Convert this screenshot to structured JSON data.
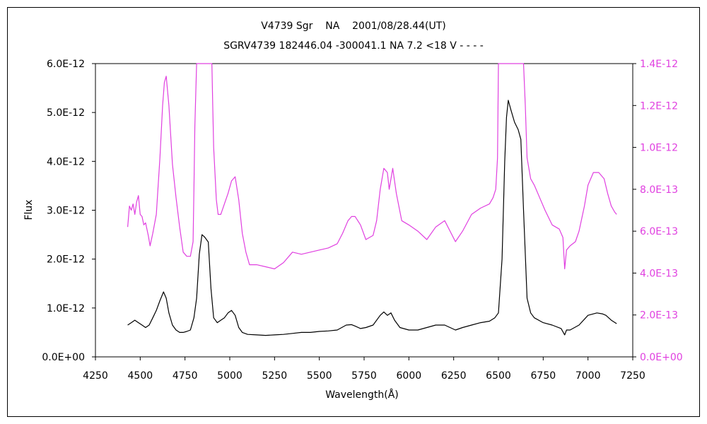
{
  "chart_data": {
    "type": "line",
    "title": "V4739 Sgr    NA    2001/08/28.44(UT)",
    "subtitle": "SGRV4739 182446.04 -300041.1 NA 7.2 <18 V - - - -",
    "xlabel": "Wavelength(Å)",
    "ylabel": "Flux",
    "xlim": [
      4250,
      7250
    ],
    "ylim_left": [
      0,
      6e-12
    ],
    "ylim_right": [
      0,
      1.4e-12
    ],
    "grid": false,
    "x_ticks": [
      "4250",
      "4500",
      "4750",
      "5000",
      "5250",
      "5500",
      "5750",
      "6000",
      "6250",
      "6500",
      "6750",
      "7000",
      "7250"
    ],
    "y_ticks_left": [
      "0.0E+00",
      "1.0E-12",
      "2.0E-12",
      "3.0E-12",
      "4.0E-12",
      "5.0E-12",
      "6.0E-12"
    ],
    "y_ticks_right": [
      "0.0E+00",
      "2.0E-13",
      "4.0E-13",
      "6.0E-13",
      "8.0E-13",
      "1.0E-12",
      "1.2E-12",
      "1.4E-12"
    ],
    "series": [
      {
        "axis": "left",
        "color": "#000000",
        "x": [
          4430,
          4450,
          4470,
          4490,
          4510,
          4530,
          4550,
          4570,
          4590,
          4610,
          4630,
          4645,
          4660,
          4680,
          4700,
          4720,
          4740,
          4760,
          4780,
          4800,
          4815,
          4830,
          4845,
          4860,
          4880,
          4895,
          4910,
          4930,
          4950,
          4970,
          4990,
          5010,
          5030,
          5050,
          5070,
          5100,
          5150,
          5200,
          5250,
          5300,
          5350,
          5400,
          5450,
          5500,
          5550,
          5600,
          5650,
          5680,
          5700,
          5730,
          5760,
          5800,
          5840,
          5860,
          5880,
          5900,
          5920,
          5950,
          6000,
          6050,
          6100,
          6150,
          6200,
          6230,
          6260,
          6300,
          6350,
          6400,
          6450,
          6480,
          6500,
          6520,
          6535,
          6545,
          6555,
          6570,
          6590,
          6610,
          6625,
          6640,
          6660,
          6680,
          6700,
          6750,
          6800,
          6850,
          6870,
          6880,
          6900,
          6950,
          7000,
          7050,
          7080,
          7100,
          7130,
          7160
        ],
        "values": [
          6.5e-13,
          7e-13,
          7.5e-13,
          7e-13,
          6.5e-13,
          6e-13,
          6.5e-13,
          8e-13,
          9.5e-13,
          1.15e-12,
          1.33e-12,
          1.2e-12,
          9e-13,
          6.5e-13,
          5.5e-13,
          5e-13,
          5e-13,
          5.2e-13,
          5.5e-13,
          8e-13,
          1.2e-12,
          2.1e-12,
          2.5e-12,
          2.45e-12,
          2.35e-12,
          1.4e-12,
          8e-13,
          7e-13,
          7.5e-13,
          8e-13,
          9e-13,
          9.5e-13,
          8.5e-13,
          6e-13,
          5e-13,
          4.6e-13,
          4.5e-13,
          4.4e-13,
          4.5e-13,
          4.6e-13,
          4.8e-13,
          5e-13,
          5e-13,
          5.2e-13,
          5.3e-13,
          5.5e-13,
          6.5e-13,
          6.6e-13,
          6.3e-13,
          5.8e-13,
          6e-13,
          6.5e-13,
          8.5e-13,
          9.2e-13,
          8.5e-13,
          9e-13,
          7.5e-13,
          6e-13,
          5.5e-13,
          5.5e-13,
          6e-13,
          6.5e-13,
          6.5e-13,
          6e-13,
          5.5e-13,
          6e-13,
          6.5e-13,
          7e-13,
          7.3e-13,
          8e-13,
          9e-13,
          2e-12,
          4e-12,
          4.9e-12,
          5.25e-12,
          5.05e-12,
          4.8e-12,
          4.65e-12,
          4.45e-12,
          3e-12,
          1.2e-12,
          9e-13,
          8e-13,
          7e-13,
          6.5e-13,
          5.8e-13,
          4.5e-13,
          5.5e-13,
          5.5e-13,
          6.5e-13,
          8.5e-13,
          9e-13,
          8.8e-13,
          8.5e-13,
          7.5e-13,
          6.8e-13
        ]
      },
      {
        "axis": "right",
        "color": "#e040e0",
        "x": [
          4430,
          4440,
          4450,
          4460,
          4470,
          4480,
          4490,
          4500,
          4510,
          4520,
          4530,
          4545,
          4555,
          4570,
          4590,
          4610,
          4625,
          4635,
          4645,
          4660,
          4680,
          4700,
          4720,
          4740,
          4760,
          4780,
          4795,
          4800,
          4805,
          4815,
          4840,
          4880,
          4900,
          4905,
          4910,
          4925,
          4935,
          4950,
          4970,
          4990,
          5010,
          5030,
          5050,
          5070,
          5090,
          5110,
          5150,
          5200,
          5250,
          5300,
          5350,
          5400,
          5450,
          5500,
          5550,
          5600,
          5630,
          5660,
          5680,
          5700,
          5730,
          5760,
          5800,
          5820,
          5840,
          5860,
          5880,
          5890,
          5900,
          5910,
          5930,
          5960,
          6000,
          6050,
          6100,
          6150,
          6200,
          6230,
          6260,
          6300,
          6350,
          6400,
          6450,
          6470,
          6485,
          6495,
          6500,
          6640,
          6650,
          6660,
          6680,
          6700,
          6730,
          6760,
          6800,
          6840,
          6860,
          6870,
          6880,
          6900,
          6930,
          6950,
          6980,
          7000,
          7030,
          7060,
          7090,
          7110,
          7130,
          7150,
          7160
        ],
        "values": [
          6.2e-13,
          7.2e-13,
          7e-13,
          7.3e-13,
          6.8e-13,
          7.4e-13,
          7.7e-13,
          6.8e-13,
          6.7e-13,
          6.3e-13,
          6.4e-13,
          5.8e-13,
          5.3e-13,
          5.9e-13,
          6.8e-13,
          9.5e-13,
          1.2e-12,
          1.31e-12,
          1.34e-12,
          1.2e-12,
          9.2e-13,
          7.6e-13,
          6.2e-13,
          5e-13,
          4.8e-13,
          4.8e-13,
          5.5e-13,
          8e-13,
          1.1e-12,
          1.4e-12,
          1.4e-12,
          1.4e-12,
          1.4e-12,
          1.2e-12,
          1e-12,
          7.5e-13,
          6.8e-13,
          6.8e-13,
          7.3e-13,
          7.8e-13,
          8.4e-13,
          8.6e-13,
          7.5e-13,
          5.9e-13,
          5e-13,
          4.4e-13,
          4.4e-13,
          4.3e-13,
          4.2e-13,
          4.5e-13,
          5e-13,
          4.9e-13,
          5e-13,
          5.1e-13,
          5.2e-13,
          5.4e-13,
          5.9e-13,
          6.5e-13,
          6.7e-13,
          6.7e-13,
          6.3e-13,
          5.6e-13,
          5.8e-13,
          6.5e-13,
          8e-13,
          9e-13,
          8.8e-13,
          8e-13,
          8.5e-13,
          9e-13,
          7.8e-13,
          6.5e-13,
          6.3e-13,
          6e-13,
          5.6e-13,
          6.2e-13,
          6.5e-13,
          6e-13,
          5.5e-13,
          6e-13,
          6.8e-13,
          7.1e-13,
          7.3e-13,
          7.6e-13,
          8e-13,
          9.5e-13,
          1.4e-12,
          1.4e-12,
          1.2e-12,
          9.5e-13,
          8.5e-13,
          8.2e-13,
          7.6e-13,
          7e-13,
          6.3e-13,
          6.1e-13,
          5.7e-13,
          4.2e-13,
          5.1e-13,
          5.3e-13,
          5.5e-13,
          6e-13,
          7.2e-13,
          8.2e-13,
          8.8e-13,
          8.8e-13,
          8.5e-13,
          7.8e-13,
          7.2e-13,
          6.9e-13,
          6.8e-13
        ]
      }
    ]
  }
}
